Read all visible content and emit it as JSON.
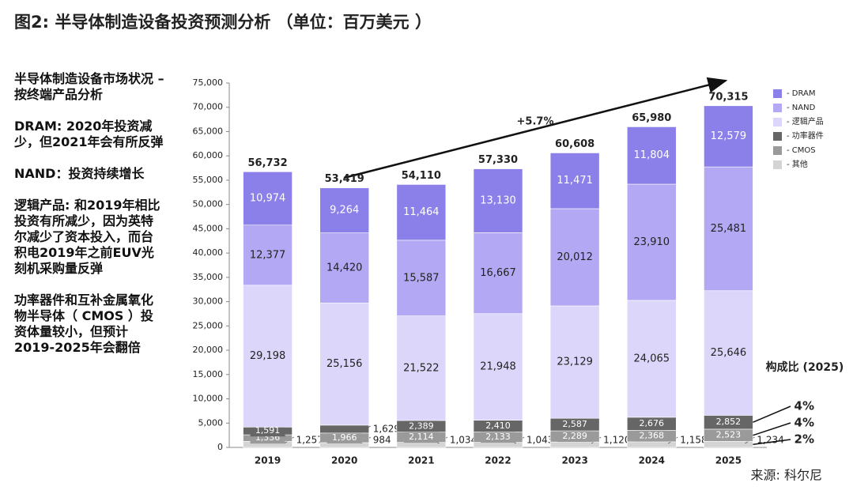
{
  "chart_data": {
    "type": "stacked-bar",
    "title": "图2: 半导体制造设备投资预测分析 （单位：百万美元 ）",
    "notes": [
      "半导体制造设备市场状况 – 按终端产品分析",
      "DRAM: 2020年投资减少，但2021年会有所反弹",
      "NAND：投资持续增长",
      "逻辑产品: 和2019年相比投资有所减少，因为英特尔减少了资本投入，而台积电2019年之前EUV光刻机采购量反弹",
      "功率器件和互补金属氧化物半导体（ CMOS ）投资体量较小，但预计2019-2025年会翻倍"
    ],
    "categories": [
      "2019",
      "2020",
      "2021",
      "2022",
      "2023",
      "2024",
      "2025"
    ],
    "series": [
      {
        "name": "- 其他",
        "color": "#d4d4d4",
        "values": [
          1257,
          984,
          1034,
          1043,
          1120,
          1158,
          1234
        ],
        "value_labels": [
          "1,257",
          "984",
          "1,034",
          "1,043",
          "1,120",
          "1,158",
          "1,234"
        ]
      },
      {
        "name": "- CMOS",
        "color": "#9a9a9a",
        "values": [
          1336,
          1966,
          2114,
          2133,
          2289,
          2368,
          2523
        ],
        "value_labels": [
          "1,336",
          "1,966",
          "2,114",
          "2,133",
          "2,289",
          "2,368",
          "2,523"
        ]
      },
      {
        "name": "- 功率器件",
        "color": "#666666",
        "values": [
          1591,
          1629,
          2389,
          2410,
          2587,
          2676,
          2852
        ],
        "value_labels": [
          "1,591",
          "1,629",
          "2,389",
          "2,410",
          "2,587",
          "2,676",
          "2,852"
        ]
      },
      {
        "name": "- 逻辑产品",
        "color": "#ddd6fb",
        "values": [
          29198,
          25156,
          21522,
          21948,
          23129,
          24065,
          25646
        ],
        "value_labels": [
          "29,198",
          "25,156",
          "21,522",
          "21,948",
          "23,129",
          "24,065",
          "25,646"
        ]
      },
      {
        "name": "- NAND",
        "color": "#b2a8f3",
        "values": [
          12377,
          14420,
          15587,
          16667,
          20012,
          23910,
          25481
        ],
        "value_labels": [
          "12,377",
          "14,420",
          "15,587",
          "16,667",
          "20,012",
          "23,910",
          "25,481"
        ]
      },
      {
        "name": "- DRAM",
        "color": "#8b7fe9",
        "values": [
          10974,
          9264,
          11464,
          13130,
          11471,
          11804,
          12579
        ],
        "value_labels": [
          "10,974",
          "9,264",
          "11,464",
          "13,130",
          "11,471",
          "11,804",
          "12,579"
        ]
      }
    ],
    "totals": [
      56732,
      53419,
      54110,
      57330,
      60608,
      65980,
      70315
    ],
    "total_labels": [
      "56,732",
      "53,419",
      "54,110",
      "57,330",
      "60,608",
      "65,980",
      "70,315"
    ],
    "growth_annotation": "+5.7%",
    "composition": {
      "title": "构成比 (2025)",
      "values": [
        4,
        4,
        2
      ],
      "labels": [
        "4%",
        "4%",
        "2%"
      ]
    },
    "source": "来源: 科尔尼",
    "ylim": [
      0,
      75000
    ],
    "yticks": [
      0,
      {
        "value": 5000,
        "label": "5,000"
      },
      {
        "value": 10000,
        "label": "10,000"
      },
      {
        "value": 15000,
        "label": "15,000"
      },
      {
        "value": 20000,
        "label": "20,000"
      },
      {
        "value": 25000,
        "label": "25,000"
      },
      {
        "value": 30000,
        "label": "30,000"
      },
      {
        "value": 35000,
        "label": "35,000"
      },
      {
        "value": 40000,
        "label": "40,000"
      },
      {
        "value": 45000,
        "label": "45,000"
      },
      {
        "value": 50000,
        "label": "50,000"
      },
      {
        "value": 55000,
        "label": "55,000"
      },
      {
        "value": 60000,
        "label": "60,000"
      },
      {
        "value": 65000,
        "label": "65,000"
      },
      {
        "value": 70000,
        "label": "70,000"
      },
      {
        "value": 75000,
        "label": "75,000"
      }
    ],
    "grid": false
  }
}
